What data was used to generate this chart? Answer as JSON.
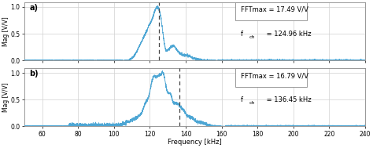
{
  "xlim": [
    50,
    240
  ],
  "ylim": [
    0,
    1.09
  ],
  "xticks": [
    60,
    80,
    100,
    120,
    140,
    160,
    180,
    200,
    220,
    240
  ],
  "yticks": [
    0,
    0.5,
    1
  ],
  "xlabel": "Frequency [kHz]",
  "ylabel": "Mag [V/V]",
  "subplot_a": {
    "label": "a)",
    "fft_max_text": "FFTmax = 17.49 V/V",
    "fch_val": " = 124.96 kHz",
    "dashed_line_x": 124.96
  },
  "subplot_b": {
    "label": "b)",
    "fft_max_text": "FFTmax = 16.79 V/V",
    "fch_val": " = 136.45 kHz",
    "dashed_line_x": 136.45
  },
  "line_color": "#4da6d4",
  "dashed_color": "#444444",
  "grid_color": "#d0d0d0",
  "background_color": "#ffffff",
  "text_color": "#000000",
  "figsize": [
    4.74,
    1.89
  ],
  "dpi": 100
}
